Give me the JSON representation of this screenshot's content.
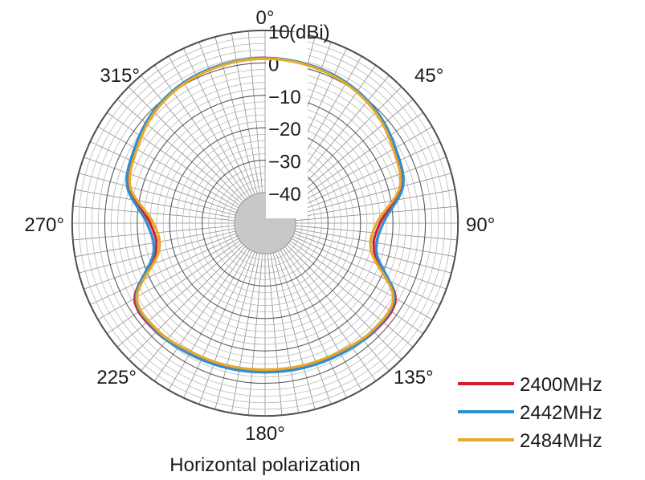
{
  "chart_data": {
    "type": "polar-line",
    "subtitle": "Horizontal polarization",
    "radial_unit": "(dBi)",
    "radial_range": [
      -40,
      10
    ],
    "radial_ticks": [
      {
        "value": 10,
        "label": "10"
      },
      {
        "value": 0,
        "label": "0"
      },
      {
        "value": -10,
        "label": "−10"
      },
      {
        "value": -20,
        "label": "−20"
      },
      {
        "value": -30,
        "label": "−30"
      },
      {
        "value": -40,
        "label": "−40"
      }
    ],
    "angle_ticks": [
      {
        "angle": 0,
        "label": "0°"
      },
      {
        "angle": 45,
        "label": "45°"
      },
      {
        "angle": 90,
        "label": "90°"
      },
      {
        "angle": 135,
        "label": "135°"
      },
      {
        "angle": 180,
        "label": "180°"
      },
      {
        "angle": 225,
        "label": "225°"
      },
      {
        "angle": 270,
        "label": "270°"
      },
      {
        "angle": 315,
        "label": "315°"
      }
    ],
    "angles": [
      0,
      15,
      30,
      45,
      60,
      75,
      90,
      105,
      120,
      135,
      150,
      165,
      180,
      195,
      210,
      225,
      240,
      255,
      270,
      285,
      300,
      315,
      330,
      345
    ],
    "series": [
      {
        "name": "2400MHz",
        "color": "#d0202e",
        "values": [
          1.5,
          1.2,
          0.5,
          -1.0,
          -3.5,
          -6.0,
          -14.0,
          -14.5,
          -3.0,
          -2.0,
          -3.2,
          -3.6,
          -3.8,
          -3.6,
          -3.2,
          -2.0,
          -3.0,
          -14.5,
          -14.0,
          -6.0,
          -3.5,
          -1.0,
          0.5,
          1.2
        ]
      },
      {
        "name": "2442MHz",
        "color": "#2f8fd0",
        "values": [
          1.5,
          1.3,
          0.7,
          -0.7,
          -3.0,
          -5.4,
          -13.0,
          -13.8,
          -3.4,
          -2.2,
          -2.8,
          -3.2,
          -3.4,
          -3.2,
          -2.8,
          -2.2,
          -3.4,
          -13.8,
          -13.0,
          -5.4,
          -3.0,
          -0.7,
          0.7,
          1.3
        ]
      },
      {
        "name": "2484MHz",
        "color": "#e8a82a",
        "values": [
          1.3,
          1.0,
          0.3,
          -1.2,
          -3.8,
          -6.4,
          -15.0,
          -15.5,
          -3.8,
          -2.6,
          -3.6,
          -4.0,
          -4.2,
          -4.0,
          -3.6,
          -2.6,
          -3.8,
          -15.5,
          -15.0,
          -6.4,
          -3.8,
          -1.2,
          0.3,
          1.0
        ]
      }
    ]
  }
}
